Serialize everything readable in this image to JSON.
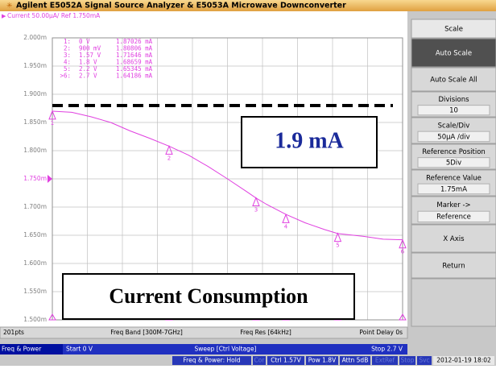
{
  "window": {
    "title": "Agilent E5052A Signal Source Analyzer & E5053A Microwave Downconverter"
  },
  "chart_data": {
    "type": "line",
    "header": "Current 50.00µA/ Ref 1.750mA",
    "x": [
      0,
      0.15,
      0.3,
      0.45,
      0.6,
      0.75,
      0.9,
      1.05,
      1.2,
      1.35,
      1.5,
      1.57,
      1.65,
      1.8,
      1.95,
      2.1,
      2.2,
      2.4,
      2.55,
      2.7
    ],
    "series": [
      {
        "name": "Current",
        "color": "#e040e0",
        "values": [
          1.87,
          1.868,
          1.86,
          1.85,
          1.835,
          1.822,
          1.808,
          1.792,
          1.772,
          1.75,
          1.727,
          1.716,
          1.705,
          1.687,
          1.672,
          1.66,
          1.653,
          1.648,
          1.643,
          1.642
        ]
      }
    ],
    "xlim": [
      0,
      2.7
    ],
    "ylim": [
      1.5,
      2.0
    ],
    "yticks": [
      {
        "value": 2.0,
        "label": "2.000m"
      },
      {
        "value": 1.95,
        "label": "1.950m"
      },
      {
        "value": 1.9,
        "label": "1.900m"
      },
      {
        "value": 1.85,
        "label": "1.850m"
      },
      {
        "value": 1.8,
        "label": "1.800m"
      },
      {
        "value": 1.75,
        "label": "1.750m"
      },
      {
        "value": 1.7,
        "label": "1.700m"
      },
      {
        "value": 1.65,
        "label": "1.650m"
      },
      {
        "value": 1.6,
        "label": "1.600m"
      },
      {
        "value": 1.55,
        "label": "1.550m"
      },
      {
        "value": 1.5,
        "label": "1.500m"
      }
    ],
    "reference": 1.75,
    "markers": [
      {
        "name": "1:",
        "tag": "1",
        "x": 0,
        "x_label": "0 V",
        "y": 1.87026,
        "y_label": "1.87026 mA"
      },
      {
        "name": "2:",
        "tag": "2",
        "x": 0.9,
        "x_label": "900 mV",
        "y": 1.80806,
        "y_label": "1.80806 mA"
      },
      {
        "name": "3:",
        "tag": "3",
        "x": 1.57,
        "x_label": "1.57 V",
        "y": 1.71646,
        "y_label": "1.71646 mA"
      },
      {
        "name": "4:",
        "tag": "4",
        "x": 1.8,
        "x_label": "1.8 V",
        "y": 1.68659,
        "y_label": "1.68659 mA"
      },
      {
        "name": "5:",
        "tag": "5",
        "x": 2.2,
        "x_label": "2.2 V",
        "y": 1.65345,
        "y_label": "1.65345 mA"
      },
      {
        "name": ">6:",
        "tag": "6",
        "x": 2.7,
        "x_label": "2.7 V",
        "y": 1.64186,
        "y_label": "1.64186 mA"
      }
    ],
    "dashed_line": 1.88,
    "annotations": [
      "1.9 mA",
      "Current Consumption"
    ]
  },
  "softkeys": [
    "Scale",
    "Auto Scale",
    "Auto Scale All",
    [
      "Divisions",
      "10"
    ],
    [
      "Scale/Div",
      "50µA /div"
    ],
    [
      "Reference Position",
      "5Div"
    ],
    [
      "Reference Value",
      "1.75mA"
    ],
    [
      "Marker ->",
      "Reference"
    ],
    "X Axis",
    "Return"
  ],
  "info_bar": [
    "201pts",
    "Freq Band [300M-7GHz]",
    "Freq Res [64kHz]",
    "Point Delay 0s"
  ],
  "sweep_bar": [
    "Freq & Power",
    "Start 0 V",
    "Sweep [Ctrl Voltage]",
    "Stop 2.7 V"
  ],
  "status_bar": [
    "Freq & Power: Hold",
    "Cor",
    "Ctrl 1.57V",
    "Pow 1.8V",
    "Attn 5dB",
    "ExtRef",
    "Stop",
    "Svc",
    "2012-01-19 18:02"
  ]
}
